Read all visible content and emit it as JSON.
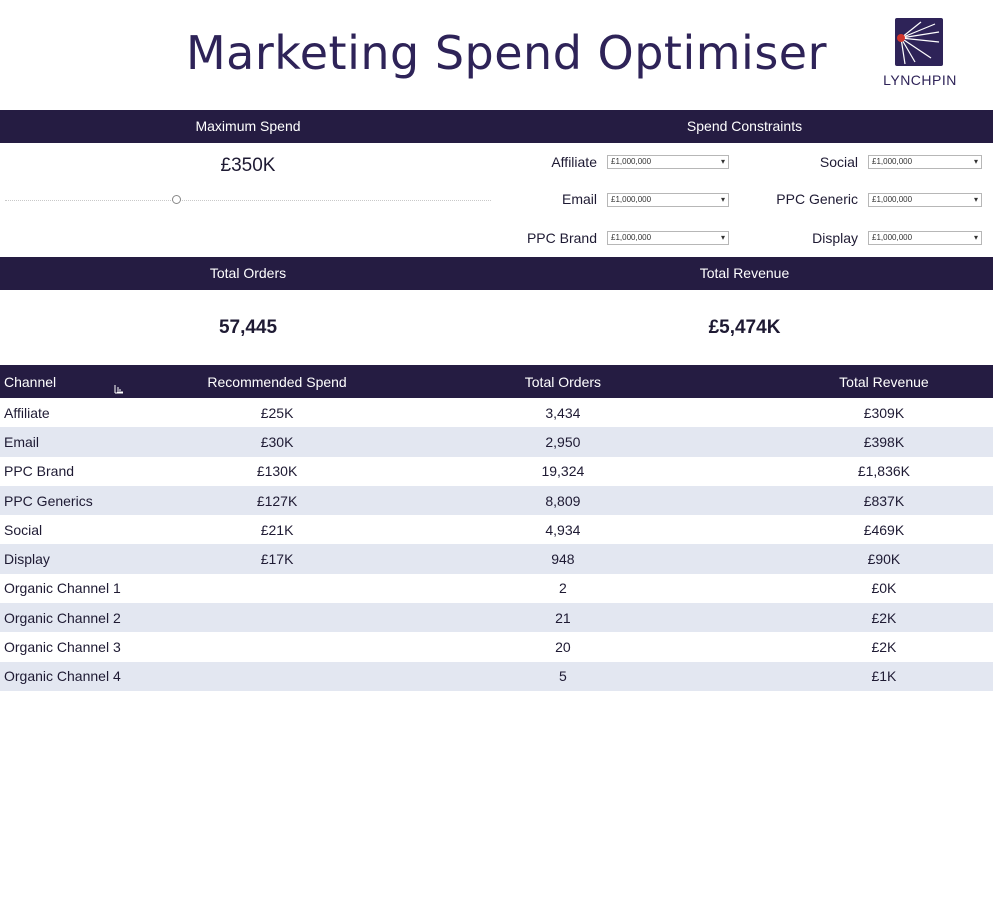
{
  "header": {
    "title": "Marketing Spend Optimiser",
    "logo_text": "LYNCHPIN",
    "logo_icon": "lynchpin-logo-icon"
  },
  "colors": {
    "header_bar": "#251c42",
    "title": "#2e2358",
    "row_alt": "#e3e7f1",
    "logo_dot": "#d0342c"
  },
  "max_spend": {
    "heading": "Maximum Spend",
    "value": "£350K",
    "slider_fraction": 0.35
  },
  "constraints": {
    "heading": "Spend Constraints",
    "items": [
      {
        "label": "Affiliate",
        "value": "£1,000,000"
      },
      {
        "label": "Social",
        "value": "£1,000,000"
      },
      {
        "label": "Email",
        "value": "£1,000,000"
      },
      {
        "label": "PPC Generic",
        "value": "£1,000,000"
      },
      {
        "label": "PPC Brand",
        "value": "£1,000,000"
      },
      {
        "label": "Display",
        "value": "£1,000,000"
      }
    ]
  },
  "totals": {
    "orders_heading": "Total Orders",
    "orders_value": "57,445",
    "revenue_heading": "Total Revenue",
    "revenue_value": "£5,474K"
  },
  "table": {
    "columns": [
      "Channel",
      "Recommended Spend",
      "Total Orders",
      "Total Revenue"
    ],
    "sort_icon": "sort-icon",
    "rows": [
      [
        "Affiliate",
        "£25K",
        "3,434",
        "£309K"
      ],
      [
        "Email",
        "£30K",
        "2,950",
        "£398K"
      ],
      [
        "PPC Brand",
        "£130K",
        "19,324",
        "£1,836K"
      ],
      [
        "PPC Generics",
        "£127K",
        "8,809",
        "£837K"
      ],
      [
        "Social",
        "£21K",
        "4,934",
        "£469K"
      ],
      [
        "Display",
        "£17K",
        "948",
        "£90K"
      ],
      [
        "Organic Channel 1",
        "",
        "2",
        "£0K"
      ],
      [
        "Organic Channel 2",
        "",
        "21",
        "£2K"
      ],
      [
        "Organic Channel 3",
        "",
        "20",
        "£2K"
      ],
      [
        "Organic Channel 4",
        "",
        "5",
        "£1K"
      ]
    ]
  }
}
